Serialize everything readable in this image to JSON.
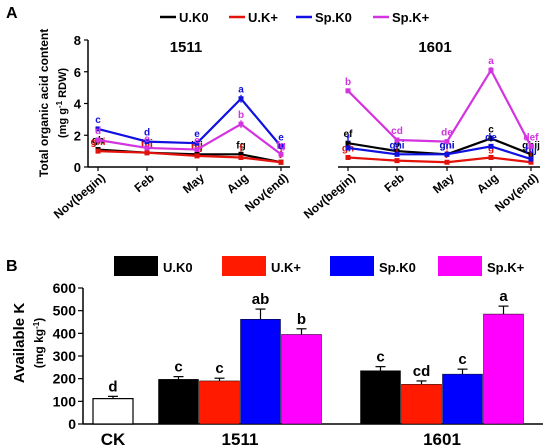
{
  "figure": {
    "panel_a_label": "A",
    "panel_b_label": "B",
    "legend_a": [
      {
        "label": "U.K0",
        "color": "#000000"
      },
      {
        "label": "U.K+",
        "color": "#e3120b"
      },
      {
        "label": "Sp.K0",
        "color": "#1010e0"
      },
      {
        "label": "Sp.K+",
        "color": "#d433e0"
      }
    ],
    "legend_b": [
      {
        "label": "U.K0",
        "color": "#000000"
      },
      {
        "label": "U.K+",
        "color": "#ff1a00"
      },
      {
        "label": "Sp.K0",
        "color": "#0000ff"
      },
      {
        "label": "Sp.K+",
        "color": "#ff00ff"
      }
    ]
  },
  "chart_data": [
    {
      "type": "line",
      "panel": "A",
      "title": "1511",
      "ylabel_line1": "Total organic acid content",
      "ylabel_line2": "(mg g",
      "ylabel_sup": "-1",
      "ylabel_tail": " RDW)",
      "ylim": [
        0,
        8
      ],
      "yticks": [
        "0",
        "2",
        "4",
        "6",
        "8"
      ],
      "categories": [
        "Nov(begin)",
        "Feb",
        "May",
        "Aug",
        "Nov(end)"
      ],
      "series": [
        {
          "name": "U.K0",
          "color": "#000000",
          "values": [
            1.1,
            0.9,
            0.8,
            0.8,
            0.3
          ],
          "errors": [
            0.1,
            0.05,
            0.05,
            0.1,
            0.1
          ],
          "labels": [
            "gh",
            "hij",
            "hij",
            "fg",
            "j"
          ]
        },
        {
          "name": "U.K+",
          "color": "#e3120b",
          "values": [
            1.0,
            0.9,
            0.7,
            0.6,
            0.3
          ],
          "errors": [
            0.1,
            0.05,
            0.05,
            0.1,
            0.1
          ],
          "labels": [
            "ghi",
            "hij",
            "hij",
            "f",
            "j"
          ]
        },
        {
          "name": "Sp.K0",
          "color": "#1010e0",
          "values": [
            2.4,
            1.6,
            1.5,
            4.3,
            1.3
          ],
          "errors": [
            0.15,
            0.1,
            0.1,
            0.25,
            0.1
          ],
          "labels": [
            "c",
            "d",
            "e",
            "a",
            "e"
          ]
        },
        {
          "name": "Sp.K+",
          "color": "#d433e0",
          "values": [
            1.7,
            1.2,
            1.1,
            2.7,
            0.8
          ],
          "errors": [
            0.1,
            0.1,
            0.1,
            0.25,
            0.1
          ],
          "labels": [
            "d",
            "e",
            "e",
            "b",
            "fg"
          ]
        }
      ]
    },
    {
      "type": "line",
      "panel": "A",
      "title": "1601",
      "ylim": [
        0,
        8
      ],
      "categories": [
        "Nov(begin)",
        "Feb",
        "May",
        "Aug",
        "Nov(end)"
      ],
      "series": [
        {
          "name": "U.K0",
          "color": "#000000",
          "values": [
            1.5,
            1.0,
            0.8,
            1.8,
            0.8
          ],
          "errors": [
            0.1,
            0.05,
            0.05,
            0.2,
            0.1
          ],
          "labels": [
            "ef",
            "g",
            "ghi",
            "c",
            "ghij"
          ]
        },
        {
          "name": "U.K+",
          "color": "#e3120b",
          "values": [
            0.6,
            0.4,
            0.3,
            0.6,
            0.3
          ],
          "errors": [
            0.05,
            0.05,
            0.05,
            0.05,
            0.05
          ],
          "labels": [
            "gh",
            "j",
            "j",
            "g",
            "j"
          ]
        },
        {
          "name": "Sp.K0",
          "color": "#1010e0",
          "values": [
            1.2,
            0.8,
            0.8,
            1.3,
            0.5
          ],
          "errors": [
            0.1,
            0.05,
            0.05,
            0.15,
            0.05
          ],
          "labels": [
            "f",
            "ghi",
            "ghi",
            "de",
            "hij"
          ]
        },
        {
          "name": "Sp.K+",
          "color": "#d433e0",
          "values": [
            4.8,
            1.7,
            1.6,
            6.1,
            1.3
          ],
          "errors": [
            0.15,
            0.1,
            0.1,
            0.2,
            0.1
          ],
          "labels": [
            "b",
            "cd",
            "de",
            "a",
            "def"
          ]
        }
      ]
    },
    {
      "type": "bar",
      "panel": "B",
      "ylabel": "Available K",
      "yunit_prefix": "(mg kg",
      "yunit_sup": "-1",
      "yunit_suffix": ")",
      "ylim": [
        0,
        600
      ],
      "yticks": [
        "0",
        "100",
        "200",
        "300",
        "400",
        "500",
        "600"
      ],
      "groups": [
        {
          "label": "CK",
          "bars": [
            {
              "name": "CK",
              "value": 112,
              "error": 10,
              "letter": "d",
              "color": "#ffffff"
            }
          ]
        },
        {
          "label": "1511",
          "bars": [
            {
              "name": "U.K0",
              "value": 197,
              "error": 12,
              "letter": "c",
              "color": "#000000"
            },
            {
              "name": "U.K+",
              "value": 190,
              "error": 12,
              "letter": "c",
              "color": "#ff1a00"
            },
            {
              "name": "Sp.K0",
              "value": 462,
              "error": 45,
              "letter": "ab",
              "color": "#0000ff"
            },
            {
              "name": "Sp.K+",
              "value": 395,
              "error": 25,
              "letter": "b",
              "color": "#ff00ff"
            }
          ]
        },
        {
          "label": "1601",
          "bars": [
            {
              "name": "U.K0",
              "value": 235,
              "error": 18,
              "letter": "c",
              "color": "#000000"
            },
            {
              "name": "U.K+",
              "value": 175,
              "error": 15,
              "letter": "cd",
              "color": "#ff1a00"
            },
            {
              "name": "Sp.K0",
              "value": 220,
              "error": 22,
              "letter": "c",
              "color": "#0000ff"
            },
            {
              "name": "Sp.K+",
              "value": 485,
              "error": 35,
              "letter": "a",
              "color": "#ff00ff"
            }
          ]
        }
      ]
    }
  ]
}
